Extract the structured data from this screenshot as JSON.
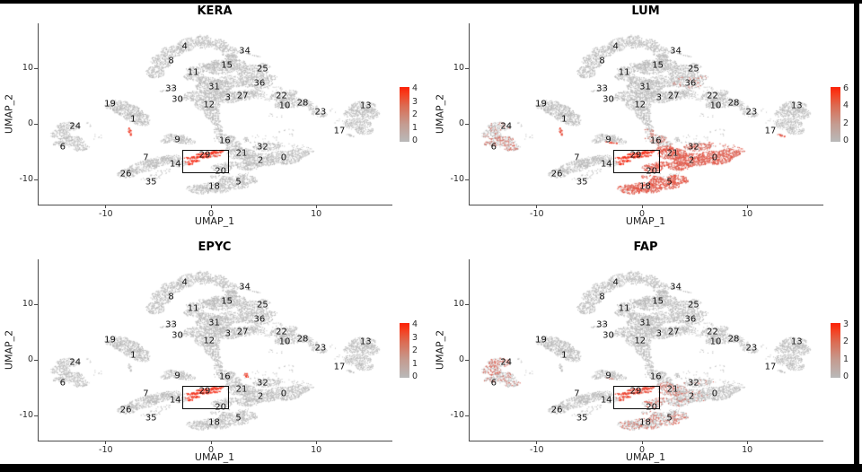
{
  "chart_data": {
    "type": "scatter",
    "subtype": "umap-feature-plot-grid",
    "xlabel": "UMAP_1",
    "ylabel": "UMAP_2",
    "xticks": [
      "-10",
      "0",
      "10"
    ],
    "yticks": [
      "10",
      "0",
      "-10"
    ],
    "xtick_values": [
      -10,
      0,
      10
    ],
    "ytick_values": [
      10,
      0,
      -10
    ],
    "xlim": [
      -16.47,
      17.15
    ],
    "ylim": [
      -14.52,
      18.06
    ],
    "highlight_box": {
      "x1": -2.76,
      "x2": 1.54,
      "y1": -8.55,
      "y2": -4.68
    },
    "colors": {
      "low": "#b9b9b9",
      "high": "#fb2108"
    },
    "panels": [
      {
        "title": "KERA",
        "colorbar_ticks": [
          "4",
          "3",
          "2",
          "1",
          "0"
        ],
        "high_expression_clusters": [
          "29"
        ]
      },
      {
        "title": "LUM",
        "colorbar_ticks": [
          "6",
          "4",
          "2",
          "0"
        ],
        "high_expression_clusters": [
          "29",
          "21",
          "2",
          "0",
          "32",
          "20",
          "18",
          "5"
        ]
      },
      {
        "title": "EPYC",
        "colorbar_ticks": [
          "4",
          "3",
          "2",
          "1",
          "0"
        ],
        "high_expression_clusters": [
          "29"
        ]
      },
      {
        "title": "FAP",
        "colorbar_ticks": [
          "3",
          "2",
          "1",
          "0"
        ],
        "high_expression_clusters": [
          "29",
          "5",
          "18",
          "20",
          "24"
        ]
      }
    ],
    "clusters": [
      {
        "id": "0",
        "x": 6.9,
        "y": -6.1
      },
      {
        "id": "1",
        "x": -7.4,
        "y": 0.8
      },
      {
        "id": "2",
        "x": 4.7,
        "y": -6.6
      },
      {
        "id": "3",
        "x": 1.6,
        "y": 4.7
      },
      {
        "id": "4",
        "x": -2.5,
        "y": 13.9
      },
      {
        "id": "5",
        "x": 2.6,
        "y": -10.5
      },
      {
        "id": "6",
        "x": -14.1,
        "y": -4.2
      },
      {
        "id": "7",
        "x": -6.2,
        "y": -6.1
      },
      {
        "id": "8",
        "x": -3.8,
        "y": 11.3
      },
      {
        "id": "9",
        "x": -3.2,
        "y": -2.9
      },
      {
        "id": "10",
        "x": 7.0,
        "y": 3.2
      },
      {
        "id": "11",
        "x": -1.7,
        "y": 9.2
      },
      {
        "id": "12",
        "x": -0.2,
        "y": 3.4
      },
      {
        "id": "13",
        "x": 14.7,
        "y": 3.2
      },
      {
        "id": "14",
        "x": -3.4,
        "y": -7.3
      },
      {
        "id": "15",
        "x": 1.5,
        "y": 10.5
      },
      {
        "id": "16",
        "x": 1.3,
        "y": -3.1
      },
      {
        "id": "17",
        "x": 12.2,
        "y": -1.3
      },
      {
        "id": "18",
        "x": 0.3,
        "y": -11.3
      },
      {
        "id": "19",
        "x": -9.6,
        "y": 3.5
      },
      {
        "id": "20",
        "x": 0.9,
        "y": -8.5
      },
      {
        "id": "21",
        "x": 2.9,
        "y": -5.3
      },
      {
        "id": "22",
        "x": 6.7,
        "y": 5.0
      },
      {
        "id": "23",
        "x": 10.4,
        "y": 2.1
      },
      {
        "id": "24",
        "x": -12.9,
        "y": -0.5
      },
      {
        "id": "25",
        "x": 4.9,
        "y": 9.8
      },
      {
        "id": "26",
        "x": -8.1,
        "y": -9.0
      },
      {
        "id": "27",
        "x": 3.0,
        "y": 5.0
      },
      {
        "id": "28",
        "x": 8.7,
        "y": 3.7
      },
      {
        "id": "29",
        "x": -0.6,
        "y": -5.6
      },
      {
        "id": "30",
        "x": -3.2,
        "y": 4.4
      },
      {
        "id": "31",
        "x": 0.3,
        "y": 6.6
      },
      {
        "id": "32",
        "x": 4.9,
        "y": -4.2
      },
      {
        "id": "33",
        "x": -3.8,
        "y": 6.3
      },
      {
        "id": "34",
        "x": 3.2,
        "y": 13.1
      },
      {
        "id": "35",
        "x": -5.7,
        "y": -10.5
      },
      {
        "id": "36",
        "x": 4.6,
        "y": 7.3
      }
    ]
  },
  "render": {
    "blobs": {
      "4": [
        [
          -3.7,
          13.0,
          1.15,
          1.05,
          40,
          1
        ],
        [
          -2.3,
          14.2,
          1.35,
          0.9,
          70,
          1
        ],
        [
          -0.7,
          14.8,
          1.35,
          0.8,
          90,
          1
        ],
        [
          0.8,
          14.2,
          1.05,
          0.85,
          110,
          1
        ],
        [
          1.8,
          12.9,
          0.8,
          0.95,
          0,
          1
        ]
      ],
      "8": [
        [
          -5.3,
          9.3,
          0.9,
          1.15,
          0,
          1
        ],
        [
          -4.7,
          11.2,
          1.0,
          1.3,
          20,
          1
        ],
        [
          2.0,
          11.6,
          0.7,
          0.8,
          0,
          1
        ],
        [
          0.9,
          10.9,
          0.95,
          0.55,
          -20,
          1
        ],
        [
          -0.3,
          10.4,
          1.0,
          0.5,
          -10,
          1
        ],
        [
          -1.5,
          9.7,
          0.9,
          0.55,
          -15,
          1
        ]
      ],
      "11": [
        [
          -1.6,
          8.5,
          1.0,
          0.75,
          0,
          1
        ],
        [
          -0.5,
          7.8,
          0.95,
          0.7,
          0,
          1
        ]
      ],
      "15": [
        [
          0.8,
          10.0,
          1.6,
          1.15,
          0,
          1
        ],
        [
          2.2,
          10.7,
          1.15,
          0.95,
          0,
          1
        ]
      ],
      "34": [
        [
          3.2,
          12.8,
          0.8,
          0.16,
          -25,
          1.3
        ],
        [
          4.3,
          12.2,
          0.5,
          0.11,
          -25,
          1.3
        ]
      ],
      "25": [
        [
          3.9,
          9.4,
          1.5,
          1.25,
          0,
          1
        ],
        [
          5.1,
          10.4,
          0.65,
          0.4,
          -20,
          1
        ]
      ],
      "36": [
        [
          4.4,
          7.4,
          1.5,
          1.15,
          0,
          0.9
        ],
        [
          5.6,
          8.3,
          0.75,
          0.5,
          0,
          0.8
        ]
      ],
      "31": [
        [
          0.3,
          6.7,
          1.8,
          1.3,
          0,
          1
        ],
        [
          2.0,
          7.6,
          1.5,
          1.1,
          0,
          0.9
        ]
      ],
      "3": [
        [
          1.7,
          4.8,
          1.5,
          1.05,
          0,
          1
        ],
        [
          0.4,
          5.4,
          1.15,
          0.95,
          0,
          1
        ]
      ],
      "27": [
        [
          3.1,
          5.1,
          1.25,
          0.9,
          0,
          0.9
        ],
        [
          4.3,
          5.6,
          0.85,
          0.65,
          0,
          0.8
        ],
        [
          5.3,
          4.7,
          0.9,
          0.6,
          0,
          0.25
        ]
      ],
      "30": [
        [
          -1.4,
          5.0,
          1.15,
          0.95,
          0,
          1
        ],
        [
          -2.6,
          4.5,
          0.55,
          0.35,
          0,
          1
        ]
      ],
      "33": [
        [
          -4.3,
          5.9,
          0.6,
          0.12,
          5,
          1.6
        ],
        [
          -3.5,
          6.35,
          0.4,
          0.1,
          5,
          1.6
        ]
      ],
      "12": [
        [
          -0.3,
          3.5,
          1.25,
          1.25,
          0,
          1
        ],
        [
          0.1,
          1.9,
          0.75,
          1.15,
          0,
          1
        ],
        [
          0.4,
          0.6,
          0.5,
          0.85,
          10,
          1
        ],
        [
          0.7,
          -0.7,
          0.4,
          0.75,
          15,
          0.9
        ]
      ],
      "22": [
        [
          6.8,
          4.9,
          1.2,
          0.95,
          0,
          1
        ],
        [
          7.6,
          5.6,
          0.65,
          0.45,
          0,
          0.8
        ],
        [
          6.2,
          6.2,
          0.8,
          0.45,
          0,
          0.25
        ]
      ],
      "10": [
        [
          7.7,
          3.8,
          1.35,
          0.9,
          0,
          1
        ],
        [
          6.7,
          3.3,
          0.75,
          0.55,
          0,
          1
        ]
      ],
      "28": [
        [
          9.0,
          3.7,
          0.75,
          0.55,
          0,
          0.9
        ],
        [
          9.6,
          3.1,
          0.5,
          0.4,
          0,
          0.8
        ]
      ],
      "23": [
        [
          10.3,
          1.8,
          0.8,
          0.55,
          -25,
          1
        ],
        [
          9.7,
          2.5,
          0.45,
          0.3,
          -25,
          0.9
        ]
      ],
      "13": [
        [
          14.4,
          3.0,
          1.35,
          1.05,
          0,
          1
        ],
        [
          15.1,
          1.8,
          0.95,
          0.95,
          0,
          1
        ],
        [
          13.4,
          1.9,
          0.85,
          0.75,
          0,
          1
        ]
      ],
      "17": [
        [
          13.9,
          0.0,
          1.35,
          1.05,
          0,
          1
        ],
        [
          14.6,
          -1.2,
          0.85,
          0.75,
          0,
          1
        ]
      ],
      "17t": [
        [
          13.3,
          -2.1,
          0.55,
          0.18,
          -35,
          1.2
        ]
      ],
      "19": [
        [
          -8.9,
          3.3,
          1.25,
          0.9,
          0,
          1
        ]
      ],
      "1": [
        [
          -7.9,
          2.3,
          1.5,
          1.15,
          -15,
          1
        ],
        [
          -7.0,
          1.1,
          1.3,
          1.0,
          -15,
          1
        ],
        [
          -6.6,
          0.2,
          0.8,
          0.55,
          -15,
          1
        ]
      ],
      "1t": [
        [
          -7.7,
          -1.4,
          0.15,
          0.7,
          5,
          1.5
        ]
      ],
      "24": [
        [
          -13.6,
          -0.5,
          1.1,
          0.8,
          0,
          1
        ],
        [
          -14.3,
          -1.9,
          0.95,
          0.9,
          0,
          1
        ]
      ],
      "6": [
        [
          -13.3,
          -3.2,
          1.3,
          0.95,
          15,
          1
        ],
        [
          -12.3,
          -4.3,
          0.8,
          0.55,
          25,
          1
        ],
        [
          -14.5,
          -3.6,
          0.55,
          0.45,
          0,
          1
        ]
      ],
      "9": [
        [
          -3.3,
          -2.5,
          1.2,
          0.7,
          -10,
          1
        ],
        [
          -2.3,
          -3.1,
          0.85,
          0.5,
          -20,
          1
        ],
        [
          -4.3,
          -3.1,
          0.55,
          0.4,
          15,
          1
        ]
      ],
      "9e": [
        [
          -2.9,
          -3.4,
          0.8,
          0.1,
          -15,
          1.5
        ]
      ],
      "16": [
        [
          1.3,
          -2.7,
          1.05,
          0.85,
          0,
          1
        ],
        [
          2.1,
          -3.6,
          0.8,
          0.6,
          0,
          1
        ],
        [
          0.7,
          -1.4,
          0.45,
          0.65,
          10,
          0.9
        ]
      ],
      "21": [
        [
          2.9,
          -5.4,
          1.4,
          1.05,
          0,
          1
        ],
        [
          2.2,
          -4.6,
          0.85,
          0.65,
          0,
          1
        ]
      ],
      "21d": [
        [
          3.35,
          -2.8,
          0.2,
          0.45,
          10,
          1.4
        ]
      ],
      "32": [
        [
          5.3,
          -4.2,
          1.3,
          0.75,
          0,
          0.9
        ],
        [
          6.7,
          -3.7,
          0.95,
          0.45,
          0,
          0.3
        ],
        [
          8.2,
          -4.0,
          0.65,
          0.38,
          0,
          0.3
        ]
      ],
      "2": [
        [
          4.7,
          -6.5,
          1.8,
          1.2,
          0,
          1
        ],
        [
          3.5,
          -7.6,
          1.15,
          0.8,
          0,
          1
        ]
      ],
      "0": [
        [
          6.9,
          -6.1,
          1.7,
          1.2,
          0,
          1
        ],
        [
          8.3,
          -5.3,
          1.05,
          0.85,
          0,
          1
        ],
        [
          9.4,
          -4.7,
          0.5,
          0.55,
          0,
          0.35
        ]
      ],
      "7": [
        [
          -6.4,
          -7.7,
          1.55,
          0.95,
          25,
          1
        ],
        [
          -5.0,
          -6.8,
          1.45,
          0.85,
          20,
          1
        ]
      ],
      "26": [
        [
          -7.9,
          -8.9,
          1.05,
          0.8,
          30,
          1
        ]
      ],
      "14": [
        [
          -3.8,
          -6.3,
          1.05,
          0.7,
          15,
          1
        ],
        [
          -3.0,
          -7.2,
          0.75,
          0.55,
          15,
          1
        ]
      ],
      "35": [
        [
          -5.6,
          -9.6,
          1.15,
          0.45,
          15,
          0.35
        ],
        [
          -4.5,
          -8.6,
          0.85,
          0.38,
          20,
          0.35
        ]
      ],
      "29": [
        [
          -0.9,
          -6.0,
          1.8,
          0.24,
          8,
          1.7
        ],
        [
          -0.2,
          -5.35,
          1.35,
          0.19,
          8,
          1.7
        ],
        [
          -1.8,
          -6.75,
          0.8,
          0.17,
          8,
          1.7
        ],
        [
          0.7,
          -4.95,
          0.75,
          0.15,
          8,
          1.7
        ],
        [
          -1.95,
          -7.2,
          0.28,
          0.2,
          0,
          1.7
        ]
      ],
      "20": [
        [
          1.0,
          -7.9,
          1.0,
          0.75,
          0,
          1
        ],
        [
          1.9,
          -7.2,
          0.65,
          0.5,
          0,
          1
        ]
      ],
      "18": [
        [
          -1.1,
          -11.8,
          1.25,
          0.8,
          -15,
          1
        ],
        [
          0.4,
          -11.5,
          1.55,
          0.9,
          -10,
          1
        ]
      ],
      "5": [
        [
          2.1,
          -10.8,
          1.55,
          0.9,
          -12,
          1
        ],
        [
          3.4,
          -10.0,
          1.05,
          0.8,
          -20,
          1
        ],
        [
          1.0,
          -9.7,
          1.25,
          0.45,
          -10,
          0.7
        ]
      ],
      "spk": [
        [
          4.8,
          -2.8,
          1.9,
          0.85,
          0,
          0.12
        ],
        [
          7.3,
          -1.6,
          0.95,
          0.65,
          0,
          0.12
        ],
        [
          11.3,
          2.2,
          0.65,
          0.5,
          0,
          0.15
        ],
        [
          -10.8,
          -2.2,
          0.55,
          0.75,
          0,
          0.12
        ],
        [
          2.6,
          -9.2,
          1.5,
          0.45,
          0,
          0.15
        ],
        [
          6.1,
          1.5,
          0.85,
          0.55,
          0,
          0.12
        ],
        [
          12.3,
          0.3,
          0.55,
          0.85,
          0,
          0.12
        ],
        [
          -11.6,
          -0.2,
          0.5,
          0.4,
          0,
          0.12
        ]
      ]
    },
    "expression": {
      "KERA": {
        "29": [
          0.93,
          0.92
        ],
        "1t": [
          0.85,
          0.85
        ]
      },
      "LUM": {
        "29": [
          0.95,
          0.95
        ],
        "21": [
          0.97,
          0.6
        ],
        "2": [
          0.97,
          0.6
        ],
        "0": [
          0.96,
          0.58
        ],
        "32": [
          0.8,
          0.5
        ],
        "20": [
          0.96,
          0.6
        ],
        "18": [
          0.97,
          0.62
        ],
        "5": [
          0.97,
          0.62
        ],
        "16": [
          0.3,
          0.45
        ],
        "9e": [
          0.9,
          0.8
        ],
        "1t": [
          0.9,
          0.8
        ],
        "6": [
          0.3,
          0.45
        ],
        "24": [
          0.18,
          0.4
        ],
        "36": [
          0.15,
          0.4
        ],
        "17t": [
          0.8,
          0.7
        ]
      },
      "EPYC": {
        "29": [
          0.93,
          0.9
        ],
        "21d": [
          0.9,
          0.85
        ]
      },
      "FAP": {
        "29": [
          0.85,
          0.75
        ],
        "5": [
          0.25,
          0.5
        ],
        "18": [
          0.22,
          0.5
        ],
        "20": [
          0.3,
          0.5
        ],
        "21": [
          0.25,
          0.45
        ],
        "2": [
          0.12,
          0.4
        ],
        "24": [
          0.45,
          0.5
        ],
        "6": [
          0.2,
          0.4
        ],
        "9e": [
          0.35,
          0.5
        ],
        "32": [
          0.1,
          0.35
        ]
      }
    }
  }
}
